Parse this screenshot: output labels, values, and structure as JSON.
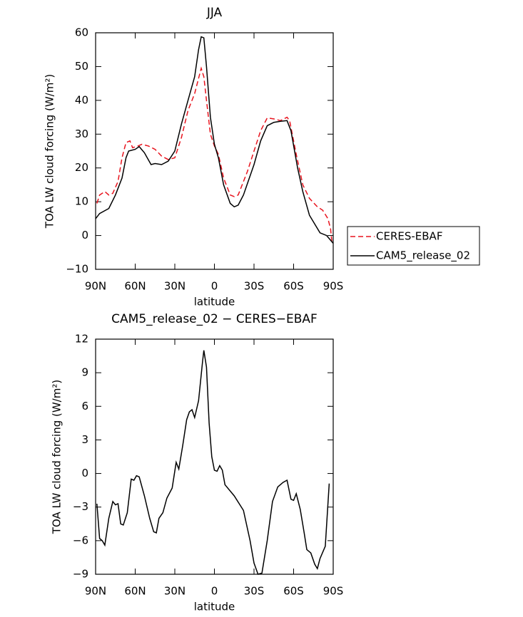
{
  "chart_data": [
    {
      "type": "line",
      "title": "JJA",
      "xlabel": "latitude",
      "ylabel": "TOA LW cloud forcing (W/m²)",
      "xlim": [
        90,
        -90
      ],
      "ylim": [
        -10,
        60
      ],
      "xticks": [
        {
          "value": 90,
          "label": "90N"
        },
        {
          "value": 60,
          "label": "60N"
        },
        {
          "value": 30,
          "label": "30N"
        },
        0,
        {
          "value": -30,
          "label": "30S"
        },
        {
          "value": -60,
          "label": "60S"
        },
        {
          "value": -90,
          "label": "90S"
        }
      ],
      "yticks": [
        {
          "value": -10,
          "label": "−10"
        },
        0,
        10,
        20,
        30,
        40,
        50,
        60
      ],
      "legend": "right",
      "series": [
        {
          "name": "CERES-EBAF",
          "color": "#e8141e",
          "dashed": true,
          "x": [
            89,
            87,
            83,
            80,
            77,
            73,
            70,
            67,
            64,
            62,
            58,
            55,
            50,
            45,
            40,
            35,
            30,
            25,
            20,
            15,
            12,
            10,
            8,
            6,
            3,
            0,
            -3,
            -7,
            -12,
            -15,
            -18,
            -25,
            -30,
            -35,
            -40,
            -45,
            -50,
            -55,
            -57,
            -62,
            -67,
            -72,
            -78,
            -82,
            -86,
            -88,
            -89
          ],
          "values": [
            9.5,
            12,
            13,
            12,
            12.5,
            16,
            23,
            27.5,
            28,
            26,
            26.5,
            27,
            26.5,
            25.5,
            23.5,
            22.5,
            23,
            29,
            37,
            42,
            46.5,
            49.5,
            47,
            40,
            30,
            26.5,
            24,
            17,
            12,
            11.5,
            12,
            19,
            25,
            31,
            34.8,
            34.5,
            34,
            35,
            34,
            24,
            15,
            11,
            8.5,
            7.5,
            5,
            2,
            -2
          ]
        },
        {
          "name": "CAM5_release_02",
          "color": "#000000",
          "dashed": false,
          "x": [
            90,
            87,
            80,
            75,
            70,
            67,
            65,
            60,
            57,
            53,
            48,
            45,
            40,
            35,
            30,
            25,
            20,
            15,
            12,
            10,
            8,
            6,
            3,
            0,
            -3,
            -7,
            -12,
            -15,
            -18,
            -22,
            -30,
            -35,
            -40,
            -45,
            -50,
            -55,
            -58,
            -63,
            -67,
            -72,
            -80,
            -85,
            -90
          ],
          "values": [
            5,
            6.5,
            8,
            12,
            17,
            23,
            25,
            25.5,
            26.3,
            24.5,
            21,
            21.3,
            21,
            22,
            25,
            33,
            40,
            47,
            55,
            58.8,
            58.5,
            50,
            35,
            27,
            23,
            15,
            9.5,
            8.5,
            9,
            12,
            21,
            28,
            32.5,
            33.5,
            33.8,
            34,
            31,
            20,
            13,
            6,
            0.8,
            0,
            -2.3
          ]
        }
      ]
    },
    {
      "type": "line",
      "title": "CAM5_release_02 − CERES−EBAF",
      "xlabel": "latitude",
      "ylabel": "TOA LW cloud forcing (W/m²)",
      "xlim": [
        90,
        -90
      ],
      "ylim": [
        -9,
        12
      ],
      "xticks": [
        {
          "value": 90,
          "label": "90N"
        },
        {
          "value": 60,
          "label": "60N"
        },
        {
          "value": 30,
          "label": "30N"
        },
        0,
        {
          "value": -30,
          "label": "30S"
        },
        {
          "value": -60,
          "label": "60S"
        },
        {
          "value": -90,
          "label": "90S"
        }
      ],
      "yticks": [
        {
          "value": -9,
          "label": "−9"
        },
        {
          "value": -6,
          "label": "−6"
        },
        {
          "value": -3,
          "label": "−3"
        },
        0,
        3,
        6,
        9,
        12
      ],
      "series": [
        {
          "color": "#000000",
          "dashed": false,
          "x": [
            89,
            87,
            85,
            83,
            80,
            77,
            75,
            73,
            71,
            69,
            66,
            63,
            61,
            59,
            57,
            53,
            49,
            46,
            44,
            42,
            39,
            36,
            32,
            29,
            27,
            24,
            21,
            19,
            17,
            15,
            12,
            9,
            8,
            6,
            4,
            2,
            0,
            -2,
            -4,
            -6,
            -8,
            -15,
            -22,
            -27,
            -30,
            -33,
            -36,
            -40,
            -44,
            -48,
            -52,
            -55,
            -58,
            -60,
            -62,
            -65,
            -68,
            -70,
            -73,
            -76,
            -78,
            -80,
            -84,
            -87
          ],
          "values": [
            -2.7,
            -5.8,
            -6,
            -6.4,
            -4,
            -2.5,
            -2.8,
            -2.7,
            -4.5,
            -4.6,
            -3.5,
            -0.5,
            -0.6,
            -0.2,
            -0.3,
            -2,
            -4,
            -5.2,
            -5.3,
            -4,
            -3.5,
            -2.2,
            -1.3,
            1,
            0.4,
            2.5,
            4.8,
            5.5,
            5.7,
            5,
            6.5,
            10,
            11,
            9.5,
            4.5,
            1.5,
            0.3,
            0.2,
            0.7,
            0.3,
            -1,
            -2,
            -3.3,
            -6,
            -8,
            -9,
            -8.9,
            -6,
            -2.5,
            -1.2,
            -0.8,
            -0.6,
            -2.3,
            -2.4,
            -1.8,
            -3.2,
            -5.3,
            -6.8,
            -7.1,
            -8.1,
            -8.5,
            -7.6,
            -6.5,
            -0.9
          ]
        }
      ]
    }
  ]
}
